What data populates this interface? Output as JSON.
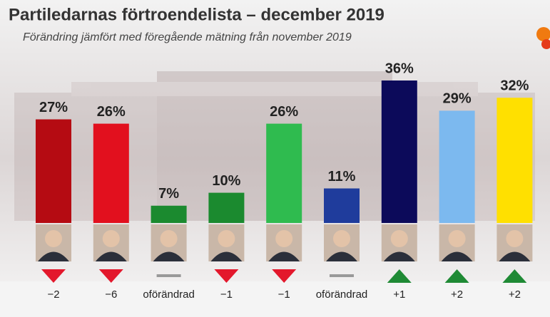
{
  "chart_data": {
    "type": "bar",
    "title": "Partiledarnas förtroendelista – december 2019",
    "subtitle": "Förändring jämfört med föregående mätning från november 2019",
    "categories": [
      null,
      null,
      null,
      null,
      null,
      null,
      null,
      null,
      null
    ],
    "values": [
      27,
      26,
      7,
      10,
      26,
      11,
      36,
      29,
      32
    ],
    "value_labels": [
      "27%",
      "26%",
      "7%",
      "10%",
      "26%",
      "11%",
      "36%",
      "29%",
      "32%"
    ],
    "colors": [
      "#b50b12",
      "#e2101e",
      "#1b8a2f",
      "#1b8a2f",
      "#2fbb4f",
      "#1f3c9c",
      "#0c0a5a",
      "#7cb9ef",
      "#ffe000"
    ],
    "changes": [
      {
        "value": -2,
        "label": "−2"
      },
      {
        "value": -6,
        "label": "−6"
      },
      {
        "value": 0,
        "label": "oförändrad"
      },
      {
        "value": -1,
        "label": "−1"
      },
      {
        "value": -1,
        "label": "−1"
      },
      {
        "value": 0,
        "label": "oförändrad"
      },
      {
        "value": 1,
        "label": "+1"
      },
      {
        "value": 2,
        "label": "+2"
      },
      {
        "value": 2,
        "label": "+2"
      }
    ],
    "ylim": [
      3,
      36
    ]
  }
}
